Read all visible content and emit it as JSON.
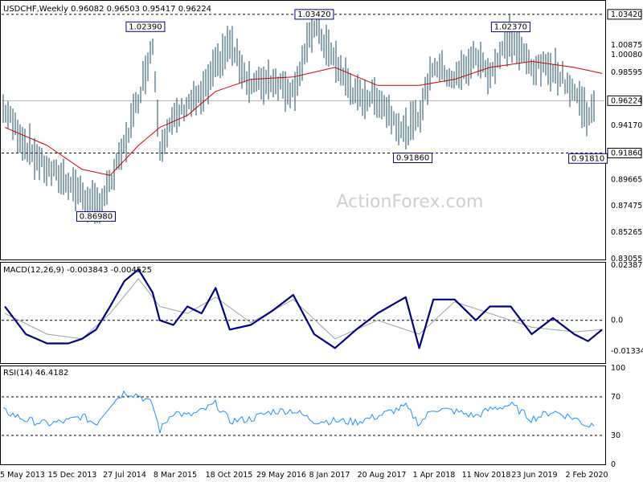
{
  "chart_data": [
    {
      "type": "line",
      "title": "USDCHF,Weekly",
      "ohlc_readout": "0.96082 0.96503 0.95417 0.96224",
      "timeframe": "Weekly",
      "watermark": "ActionForex.com",
      "ylim": [
        0.83055,
        1.0435
      ],
      "y_ticks": [
        "1.03420",
        "1.00875",
        "1.00080",
        "0.98595",
        "0.96224",
        "0.94170",
        "0.91860",
        "0.89665",
        "0.87475",
        "0.85265",
        "0.83055"
      ],
      "x_ticks": [
        "5 May 2013",
        "15 Dec 2013",
        "27 Jul 2014",
        "8 Mar 2015",
        "18 Oct 2015",
        "29 May 2016",
        "8 Jan 2017",
        "20 Aug 2017",
        "1 Apr 2018",
        "11 Nov 2018",
        "23 Jun 2019",
        "2 Feb 2020"
      ],
      "current_price": "0.96224",
      "horizontal_levels": [
        {
          "label": "1.03420",
          "value": 1.0342
        },
        {
          "label": "0.91860",
          "value": 0.9186
        }
      ],
      "annotations": [
        {
          "label": "1.02390",
          "value": 1.0239,
          "date": "2014-12"
        },
        {
          "label": "1.03420",
          "value": 1.0342,
          "date": "2016-12"
        },
        {
          "label": "1.02370",
          "value": 1.0237,
          "date": "2019-04"
        },
        {
          "label": "0.86980",
          "value": 0.8698,
          "date": "2014-05"
        },
        {
          "label": "0.91860",
          "value": 0.9186,
          "date": "2018-02"
        },
        {
          "label": "0.91810",
          "value": 0.9181,
          "date": "2020-03"
        }
      ],
      "series": [
        {
          "name": "",
          "style": "ohlc-bars",
          "color": "#3d6b7c",
          "x": [
            "2013-04",
            "2013-07",
            "2013-10",
            "2014-01",
            "2014-03",
            "2014-05",
            "2014-07",
            "2014-09",
            "2014-11",
            "2015-01",
            "2015-02",
            "2015-04",
            "2015-06",
            "2015-08",
            "2015-10",
            "2015-12",
            "2016-03",
            "2016-06",
            "2016-09",
            "2016-12",
            "2017-03",
            "2017-06",
            "2017-09",
            "2018-01",
            "2018-03",
            "2018-05",
            "2018-08",
            "2018-11",
            "2019-01",
            "2019-04",
            "2019-07",
            "2019-10",
            "2020-01",
            "2020-03",
            "2020-05"
          ],
          "values": [
            0.955,
            0.925,
            0.905,
            0.895,
            0.884,
            0.872,
            0.892,
            0.925,
            0.965,
            1.01,
            0.925,
            0.945,
            0.96,
            0.965,
            0.99,
            1.01,
            0.975,
            0.98,
            0.97,
            1.025,
            0.995,
            0.965,
            0.965,
            0.935,
            0.95,
            0.993,
            0.98,
            0.999,
            0.985,
            1.015,
            0.99,
            0.99,
            0.97,
            0.95,
            0.962
          ]
        },
        {
          "name": "",
          "style": "moving-average",
          "color": "#cc0000",
          "x": [
            "2013-04",
            "2013-10",
            "2014-03",
            "2014-07",
            "2014-11",
            "2015-02",
            "2015-06",
            "2015-10",
            "2016-03",
            "2016-09",
            "2017-03",
            "2017-09",
            "2018-03",
            "2018-08",
            "2019-01",
            "2019-07",
            "2020-01",
            "2020-05"
          ],
          "values": [
            0.94,
            0.925,
            0.905,
            0.9,
            0.925,
            0.94,
            0.95,
            0.97,
            0.98,
            0.982,
            0.99,
            0.975,
            0.975,
            0.98,
            0.99,
            0.995,
            0.99,
            0.985
          ]
        }
      ]
    },
    {
      "type": "line",
      "title": "MACD(12,26,9) -0.003843 -0.004525",
      "ylim": [
        -0.0178,
        0.023873
      ],
      "y_ticks": [
        "0.023873",
        "0.0",
        "-0.013346"
      ],
      "series": [
        {
          "name": "",
          "color": "#000080",
          "x": [
            "2013-04",
            "2013-07",
            "2013-10",
            "2014-01",
            "2014-03",
            "2014-05",
            "2014-07",
            "2014-09",
            "2014-11",
            "2015-01",
            "2015-02",
            "2015-04",
            "2015-06",
            "2015-08",
            "2015-10",
            "2015-12",
            "2016-03",
            "2016-06",
            "2016-09",
            "2016-12",
            "2017-03",
            "2017-06",
            "2017-09",
            "2018-01",
            "2018-03",
            "2018-05",
            "2018-08",
            "2018-11",
            "2019-01",
            "2019-04",
            "2019-07",
            "2019-10",
            "2020-01",
            "2020-03",
            "2020-05"
          ],
          "values": [
            0.006,
            -0.006,
            -0.01,
            -0.01,
            -0.008,
            -0.004,
            0.006,
            0.017,
            0.022,
            0.012,
            0.0,
            -0.002,
            0.006,
            0.003,
            0.014,
            -0.004,
            -0.002,
            0.004,
            0.011,
            -0.006,
            -0.012,
            -0.004,
            0.003,
            0.01,
            -0.012,
            0.009,
            0.009,
            0.0,
            0.006,
            0.006,
            -0.006,
            0.001,
            -0.006,
            -0.009,
            -0.004
          ]
        },
        {
          "name": "",
          "color": "#a0a0a0",
          "x": [
            "2013-04",
            "2013-10",
            "2014-03",
            "2014-07",
            "2014-11",
            "2015-02",
            "2015-06",
            "2015-10",
            "2016-03",
            "2016-09",
            "2017-03",
            "2017-09",
            "2018-03",
            "2018-08",
            "2019-01",
            "2019-07",
            "2020-01",
            "2020-05"
          ],
          "values": [
            0.003,
            -0.006,
            -0.008,
            0.003,
            0.018,
            0.006,
            0.003,
            0.01,
            -0.001,
            0.009,
            -0.008,
            0.0,
            -0.006,
            0.008,
            0.003,
            -0.003,
            -0.005,
            -0.004
          ]
        }
      ]
    },
    {
      "type": "line",
      "title": "RSI(14) 46.4182",
      "ylim": [
        0,
        100
      ],
      "y_ticks": [
        "100",
        "70",
        "30",
        "0"
      ],
      "series": [
        {
          "name": "",
          "color": "#1e90ff",
          "x": [
            "2013-04",
            "2013-07",
            "2013-10",
            "2014-01",
            "2014-03",
            "2014-05",
            "2014-07",
            "2014-09",
            "2014-11",
            "2015-01",
            "2015-02",
            "2015-04",
            "2015-06",
            "2015-08",
            "2015-10",
            "2015-12",
            "2016-03",
            "2016-06",
            "2016-09",
            "2016-12",
            "2017-03",
            "2017-06",
            "2017-09",
            "2018-01",
            "2018-03",
            "2018-05",
            "2018-08",
            "2018-11",
            "2019-01",
            "2019-04",
            "2019-07",
            "2019-10",
            "2020-01",
            "2020-03",
            "2020-05"
          ],
          "values": [
            55,
            46,
            42,
            45,
            50,
            42,
            62,
            75,
            72,
            62,
            35,
            55,
            50,
            55,
            63,
            45,
            47,
            55,
            56,
            45,
            45,
            44,
            50,
            60,
            42,
            58,
            55,
            50,
            57,
            62,
            47,
            55,
            48,
            40,
            46
          ]
        }
      ]
    }
  ]
}
